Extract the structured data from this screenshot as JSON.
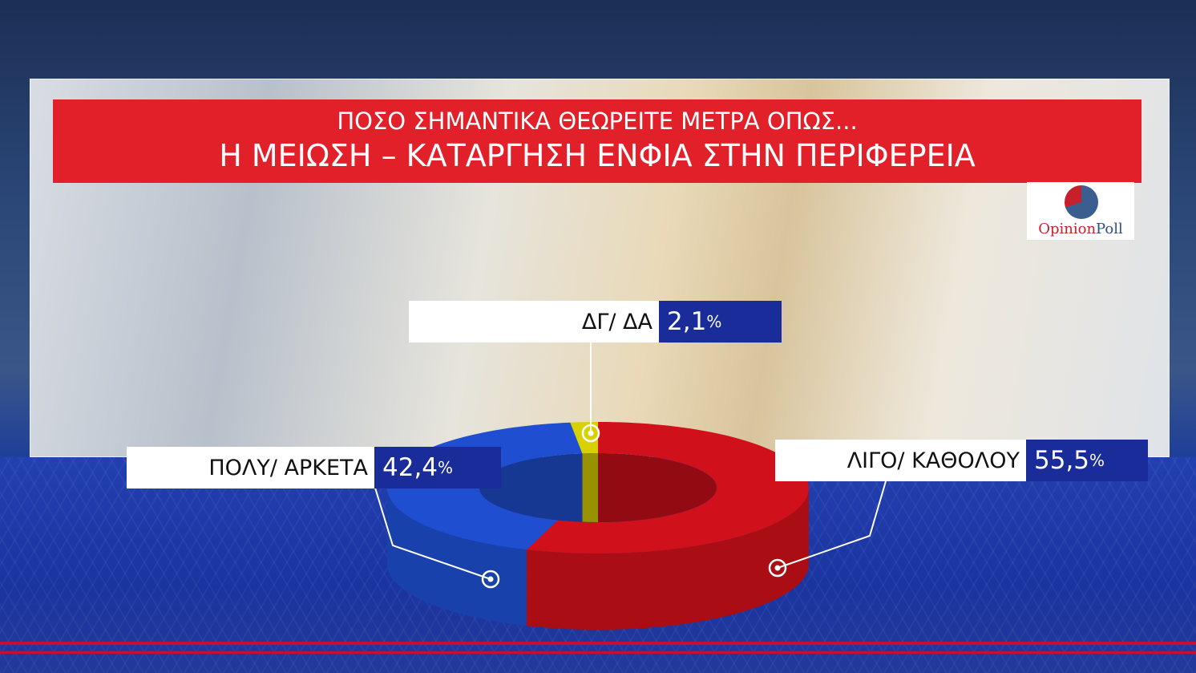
{
  "banner": {
    "line1": "ΠΟΣΟ ΣΗΜΑΝΤΙΚΑ ΘΕΩΡΕΙΤΕ ΜΕΤΡΑ ΟΠΩΣ...",
    "line2": "Η ΜΕΙΩΣΗ – ΚΑΤΑΡΓΗΣΗ ΕΝΦΙΑ ΣΤΗΝ ΠΕΡΙΦΕΡΕΙΑ"
  },
  "logo": {
    "text_part1": "Opinion",
    "text_part2": "Poll"
  },
  "chart_data": {
    "type": "pie",
    "style": "3d-donut",
    "title": "Η ΜΕΙΩΣΗ – ΚΑΤΑΡΓΗΣΗ ΕΝΦΙΑ ΣΤΗΝ ΠΕΡΙΦΕΡΕΙΑ",
    "slices": [
      {
        "label": "ΛΙΓΟ/ ΚΑΘΟΛΟΥ",
        "value": 55.5,
        "display": "55,5",
        "color": "#d0101a"
      },
      {
        "label": "ΠΟΛΥ/ ΑΡΚΕΤΑ",
        "value": 42.4,
        "display": "42,4",
        "color": "#1f4fd0"
      },
      {
        "label": "ΔΓ/ ΔΑ",
        "value": 2.1,
        "display": "2,1",
        "color": "#d9d000"
      }
    ],
    "unit": "%"
  }
}
